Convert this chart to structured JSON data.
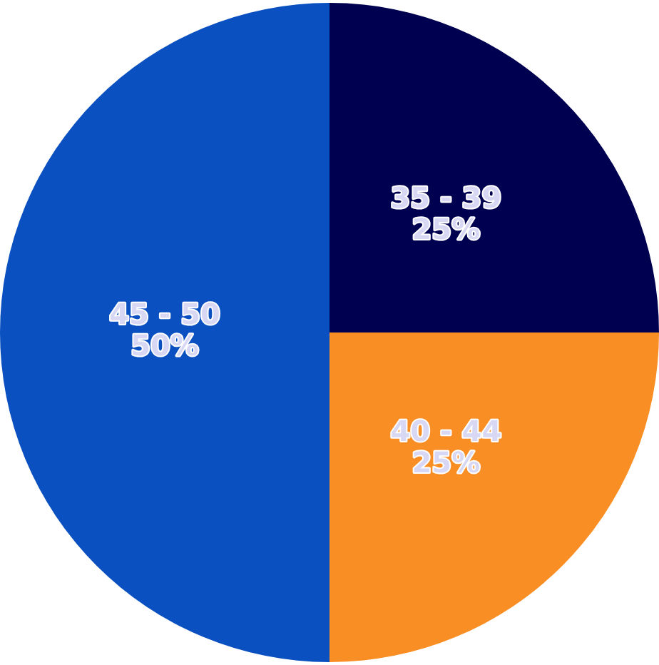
{
  "chart_data": {
    "type": "pie",
    "categories": [
      "35 - 39",
      "40 - 44",
      "45 - 50"
    ],
    "values": [
      25,
      25,
      50
    ],
    "colors": [
      "#000050",
      "#f98e24",
      "#0a50c0"
    ],
    "value_labels": [
      "25%",
      "25%",
      "50%"
    ],
    "legend": false
  }
}
